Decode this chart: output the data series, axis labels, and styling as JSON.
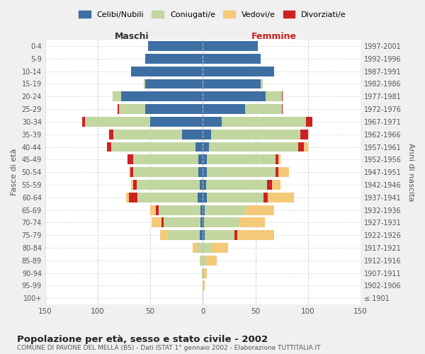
{
  "age_groups": [
    "100+",
    "95-99",
    "90-94",
    "85-89",
    "80-84",
    "75-79",
    "70-74",
    "65-69",
    "60-64",
    "55-59",
    "50-54",
    "45-49",
    "40-44",
    "35-39",
    "30-34",
    "25-29",
    "20-24",
    "15-19",
    "10-14",
    "5-9",
    "0-4"
  ],
  "birth_years": [
    "≤ 1901",
    "1902-1906",
    "1907-1911",
    "1912-1916",
    "1917-1921",
    "1922-1926",
    "1927-1931",
    "1932-1936",
    "1937-1941",
    "1942-1946",
    "1947-1951",
    "1952-1956",
    "1957-1961",
    "1962-1966",
    "1967-1971",
    "1972-1976",
    "1977-1981",
    "1982-1986",
    "1987-1991",
    "1992-1996",
    "1997-2001"
  ],
  "male_celibi": [
    0,
    0,
    0,
    0,
    0,
    3,
    2,
    2,
    5,
    3,
    4,
    4,
    7,
    20,
    50,
    55,
    78,
    55,
    68,
    55,
    52
  ],
  "male_coniugati": [
    0,
    0,
    1,
    2,
    5,
    30,
    35,
    40,
    57,
    60,
    62,
    62,
    80,
    65,
    62,
    25,
    8,
    1,
    0,
    0,
    0
  ],
  "male_vedovi": [
    0,
    0,
    0,
    1,
    5,
    8,
    10,
    5,
    3,
    2,
    1,
    0,
    0,
    0,
    0,
    0,
    0,
    0,
    0,
    0,
    0
  ],
  "male_divorziati": [
    0,
    0,
    0,
    0,
    0,
    0,
    2,
    3,
    8,
    3,
    3,
    6,
    4,
    4,
    3,
    1,
    0,
    0,
    0,
    0,
    0
  ],
  "female_celibi": [
    0,
    0,
    0,
    0,
    0,
    2,
    1,
    2,
    4,
    3,
    4,
    4,
    6,
    8,
    18,
    40,
    60,
    55,
    68,
    55,
    52
  ],
  "female_coniugati": [
    0,
    1,
    1,
    3,
    8,
    28,
    33,
    38,
    54,
    58,
    65,
    65,
    85,
    85,
    80,
    35,
    15,
    2,
    0,
    0,
    0
  ],
  "female_vedovi": [
    0,
    1,
    3,
    10,
    16,
    35,
    25,
    28,
    25,
    8,
    10,
    2,
    4,
    0,
    0,
    0,
    0,
    0,
    0,
    0,
    0
  ],
  "female_divorziati": [
    0,
    0,
    0,
    0,
    0,
    3,
    0,
    0,
    4,
    5,
    3,
    3,
    5,
    7,
    6,
    1,
    1,
    0,
    0,
    0,
    0
  ],
  "color_celibi": "#3e6fa3",
  "color_coniugati": "#c2d6a0",
  "color_vedovi": "#f5c97a",
  "color_divorziati": "#cc2222",
  "title": "Popolazione per età, sesso e stato civile - 2002",
  "subtitle": "COMUNE DI PAVONE DEL MELLA (BS) - Dati ISTAT 1° gennaio 2002 - Elaborazione TUTTITALIA.IT",
  "xlabel_left": "Maschi",
  "xlabel_right": "Femmine",
  "ylabel_left": "Fasce di età",
  "ylabel_right": "Anni di nascita",
  "xlim": 150,
  "bg_color": "#f0f0f0",
  "plot_bg": "#ffffff",
  "grid_color": "#cccccc"
}
